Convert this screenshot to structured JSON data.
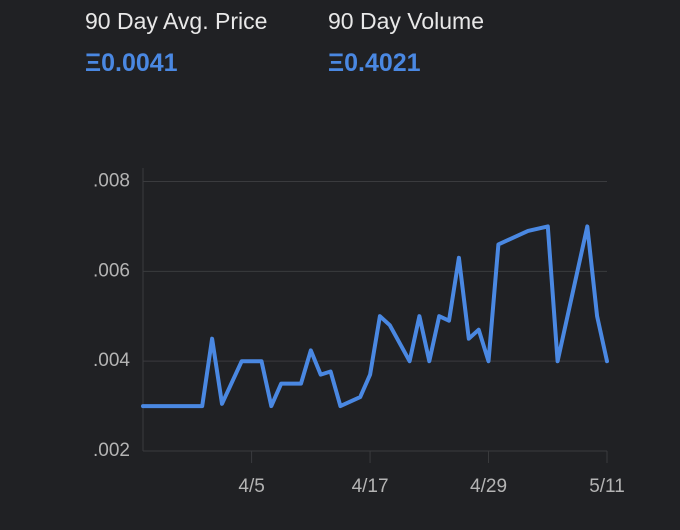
{
  "header": {
    "stats": [
      {
        "label": "90 Day Avg. Price",
        "value": "Ξ0.0041"
      },
      {
        "label": "90 Day Volume",
        "value": "Ξ0.4021"
      }
    ]
  },
  "chart_data": {
    "type": "line",
    "x": [
      "3/25",
      "3/31",
      "4/1",
      "4/2",
      "4/4",
      "4/6",
      "4/7",
      "4/8",
      "4/10",
      "4/11",
      "4/12",
      "4/13",
      "4/14",
      "4/16",
      "4/17",
      "4/18",
      "4/19",
      "4/21",
      "4/22",
      "4/23",
      "4/24",
      "4/25",
      "4/26",
      "4/27",
      "4/28",
      "4/29",
      "4/30",
      "5/3",
      "5/5",
      "5/6",
      "5/9",
      "5/10",
      "5/11"
    ],
    "series": [
      {
        "color": "#4a88e2",
        "values": [
          0.003,
          0.003,
          0.0045,
          0.00305,
          0.004,
          0.004,
          0.003,
          0.0035,
          0.0035,
          0.00424,
          0.0037,
          0.00377,
          0.003,
          0.0032,
          0.0037,
          0.005,
          0.0048,
          0.004,
          0.005,
          0.004,
          0.005,
          0.0049,
          0.0063,
          0.0045,
          0.0047,
          0.004,
          0.0066,
          0.0069,
          0.007,
          0.004,
          0.007,
          0.005,
          0.004
        ]
      }
    ],
    "xlim": [
      "3/25",
      "5/11"
    ],
    "xticks": [
      "4/5",
      "4/17",
      "4/29",
      "5/11"
    ],
    "ylim": [
      0.002,
      0.0083
    ],
    "yticks": [
      {
        "value": 0.002,
        "label": ".002"
      },
      {
        "value": 0.004,
        "label": ".004"
      },
      {
        "value": 0.006,
        "label": ".006"
      },
      {
        "value": 0.008,
        "label": ".008"
      }
    ],
    "grid": true
  }
}
